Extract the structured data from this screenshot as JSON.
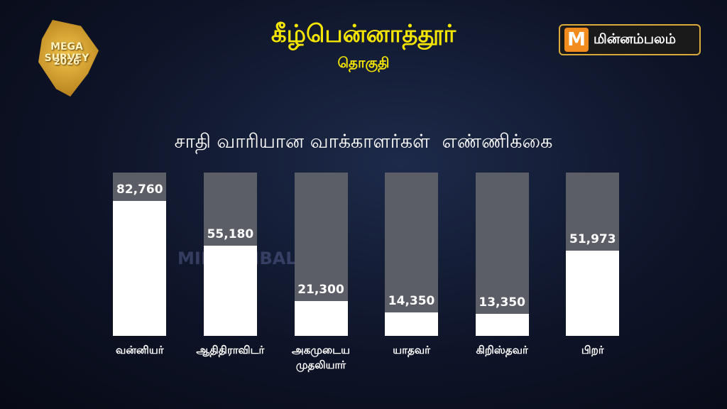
{
  "logo": {
    "line1": "MEGA SURVEY",
    "line2": "2026"
  },
  "brand": "மின்னம்பலம்",
  "watermark": "MINNAMBALAM",
  "chart_data": {
    "type": "bar",
    "title": "கீழ்பென்னாத்தூர்",
    "subtitle": "தொகுதி",
    "caption": "சாதி வாரியான வாக்காளர்கள்  எண்ணிக்கை",
    "categories": [
      "வன்னியர்",
      "ஆதிதிராவிடர்",
      "அகமுடைய முதலியார்",
      "யாதவர்",
      "கிறிஸ்தவர்",
      "பிறர்"
    ],
    "values": [
      82760,
      55180,
      21300,
      14350,
      13350,
      51973
    ],
    "value_labels": [
      "82,760",
      "55,180",
      "21,300",
      "14,350",
      "13,350",
      "51,973"
    ],
    "color": "#ffffff",
    "track_color": "#5b5e66",
    "ylim": [
      0,
      100000
    ]
  }
}
